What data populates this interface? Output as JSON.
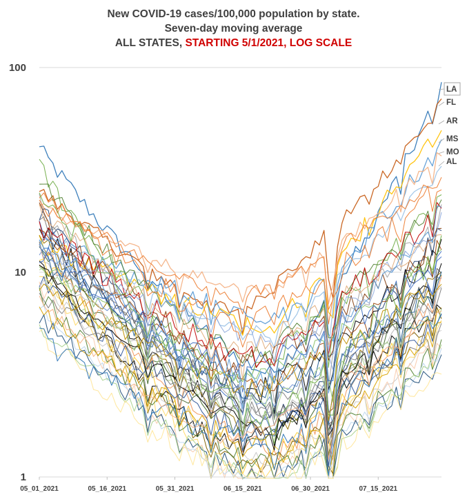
{
  "chart_data": {
    "type": "line",
    "title": "New COVID-19 cases/100,000 population by state.",
    "subtitle": "Seven-day moving average",
    "subtitle2_prefix": "ALL STATES, ",
    "subtitle2_highlight": "STARTING 5/1/2021, LOG SCALE",
    "xlabel": "",
    "ylabel": "",
    "y_scale": "log",
    "ylim": [
      1,
      100
    ],
    "y_ticks": [
      "1",
      "10",
      "100"
    ],
    "x_ticks": [
      "05_01_2021",
      "05_16_2021",
      "05_31_2021",
      "06_15_2021",
      "06_30_2021",
      "07_15_2021"
    ],
    "x_start": "2021-05-01",
    "x_end": "2021-07-29",
    "grid": "horizontal",
    "labeled_series": [
      {
        "name": "LA",
        "end_value": 78,
        "color": "#2e75b6",
        "boxed": true
      },
      {
        "name": "FL",
        "end_value": 65,
        "color": "#c55a11"
      },
      {
        "name": "AR",
        "end_value": 53,
        "color": "#ffc000"
      },
      {
        "name": "MS",
        "end_value": 43,
        "color": "#5b9bd5"
      },
      {
        "name": "MO",
        "end_value": 38,
        "color": "#f4b183"
      },
      {
        "name": "AL",
        "end_value": 33,
        "color": "#9dc3e6"
      }
    ],
    "series_profiles": [
      {
        "start": 40,
        "min": 3.2,
        "end": 78,
        "color": "#2e75b6"
      },
      {
        "start": 25,
        "min": 6.5,
        "end": 65,
        "color": "#c55a11"
      },
      {
        "start": 14,
        "min": 5.5,
        "end": 53,
        "color": "#ffc000"
      },
      {
        "start": 15,
        "min": 6.0,
        "end": 43,
        "color": "#5b9bd5"
      },
      {
        "start": 21,
        "min": 8.0,
        "end": 38,
        "color": "#f4b183"
      },
      {
        "start": 16,
        "min": 5.0,
        "end": 33,
        "color": "#9dc3e6"
      },
      {
        "start": 32,
        "min": 3.0,
        "end": 24,
        "color": "#70ad47"
      },
      {
        "start": 28,
        "min": 4.0,
        "end": 22,
        "color": "#548235"
      },
      {
        "start": 22,
        "min": 2.5,
        "end": 19,
        "color": "#a5a5a5"
      },
      {
        "start": 20,
        "min": 2.0,
        "end": 17,
        "color": "#264478"
      },
      {
        "start": 24,
        "min": 7.5,
        "end": 29,
        "color": "#ed7d31"
      },
      {
        "start": 19,
        "min": 3.5,
        "end": 15,
        "color": "#843c0c"
      },
      {
        "start": 18,
        "min": 2.2,
        "end": 13,
        "color": "#000000"
      },
      {
        "start": 17,
        "min": 1.8,
        "end": 12,
        "color": "#4472c4"
      },
      {
        "start": 16,
        "min": 2.8,
        "end": 14,
        "color": "#9e480e"
      },
      {
        "start": 15,
        "min": 1.6,
        "end": 11,
        "color": "#997300"
      },
      {
        "start": 14,
        "min": 2.0,
        "end": 10,
        "color": "#636363"
      },
      {
        "start": 14,
        "min": 1.5,
        "end": 9.0,
        "color": "#43682b"
      },
      {
        "start": 13,
        "min": 2.4,
        "end": 9.5,
        "color": "#698ed0"
      },
      {
        "start": 13,
        "min": 1.3,
        "end": 8.5,
        "color": "#f1975a"
      },
      {
        "start": 12,
        "min": 1.9,
        "end": 8.0,
        "color": "#b7b7b7"
      },
      {
        "start": 12,
        "min": 1.2,
        "end": 7.5,
        "color": "#ffcd33"
      },
      {
        "start": 12,
        "min": 2.6,
        "end": 8.8,
        "color": "#255e91"
      },
      {
        "start": 11,
        "min": 1.4,
        "end": 7.0,
        "color": "#000000"
      },
      {
        "start": 11,
        "min": 3.0,
        "end": 12.5,
        "color": "#8cc168"
      },
      {
        "start": 11,
        "min": 1.1,
        "end": 6.5,
        "color": "#7f6000"
      },
      {
        "start": 10,
        "min": 2.2,
        "end": 6.2,
        "color": "#a9d18e"
      },
      {
        "start": 10,
        "min": 1.0,
        "end": 5.5,
        "color": "#ffd966"
      },
      {
        "start": 9.5,
        "min": 1.6,
        "end": 6.0,
        "color": "#2f5597"
      },
      {
        "start": 9.0,
        "min": 1.2,
        "end": 5.0,
        "color": "#c9c9c9"
      },
      {
        "start": 8.5,
        "min": 1.0,
        "end": 4.5,
        "color": "#f8cbad"
      },
      {
        "start": 8.0,
        "min": 2.0,
        "end": 5.2,
        "color": "#808080"
      },
      {
        "start": 7.5,
        "min": 1.1,
        "end": 4.3,
        "color": "#548235"
      },
      {
        "start": 7.0,
        "min": 0.9,
        "end": 4.0,
        "color": "#bdd7ee"
      },
      {
        "start": 6.5,
        "min": 1.3,
        "end": 5.8,
        "color": "#d9a300"
      },
      {
        "start": 6.0,
        "min": 1.0,
        "end": 3.8,
        "color": "#1f4e79"
      },
      {
        "start": 5.5,
        "min": 0.95,
        "end": 4.2,
        "color": "#a9d18e"
      },
      {
        "start": 5.0,
        "min": 0.9,
        "end": 3.5,
        "color": "#ffe699"
      },
      {
        "start": 4.8,
        "min": 1.4,
        "end": 6.8,
        "color": "#2e75b6"
      },
      {
        "start": 17,
        "min": 3.8,
        "end": 21,
        "color": "#c00000"
      },
      {
        "start": 13,
        "min": 4.5,
        "end": 18,
        "color": "#8faadc"
      },
      {
        "start": 10.5,
        "min": 1.7,
        "end": 10.5,
        "color": "#000000"
      },
      {
        "start": 21,
        "min": 4.2,
        "end": 16,
        "color": "#e2ac7c"
      },
      {
        "start": 12.5,
        "min": 3.4,
        "end": 11,
        "color": "#4472c4"
      },
      {
        "start": 9.0,
        "min": 2.7,
        "end": 9.2,
        "color": "#bf9000"
      },
      {
        "start": 19,
        "min": 2.1,
        "end": 7.8,
        "color": "#7f7f7f"
      },
      {
        "start": 26,
        "min": 1.9,
        "end": 13.5,
        "color": "#70ad47"
      },
      {
        "start": 7.2,
        "min": 1.5,
        "end": 6.6,
        "color": "#f4b183"
      },
      {
        "start": 14.5,
        "min": 2.9,
        "end": 20,
        "color": "#5b9bd5"
      },
      {
        "start": 23,
        "min": 5.5,
        "end": 27,
        "color": "#ed7d31"
      }
    ]
  }
}
